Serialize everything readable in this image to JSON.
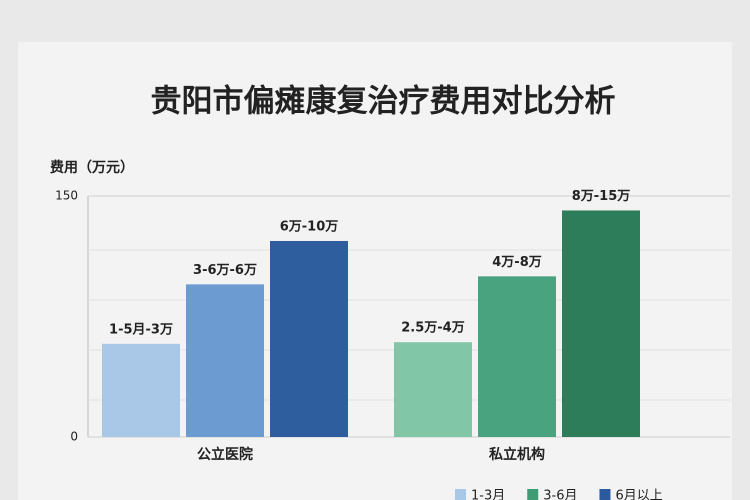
{
  "chart_data": {
    "type": "bar",
    "title": "贵阳市偏瘫康复治疗费用对比分析",
    "y_label": "费用（万元）",
    "categories": [
      "公立医院",
      "私立机构"
    ],
    "series": [
      {
        "name": "1-3月",
        "color": "#a9c8e8",
        "colors": [
          "#a9c8e8",
          "#82c6a8"
        ],
        "values": [
          58,
          59
        ],
        "labels": [
          "1-5月-3万",
          "2.5万-4万"
        ]
      },
      {
        "name": "3-6月",
        "color": "#3f9c75",
        "colors": [
          "#6b9bd1",
          "#4aa37f"
        ],
        "values": [
          95,
          100
        ],
        "labels": [
          "3-6万-6万",
          "4万-8万"
        ]
      },
      {
        "name": "6月以上",
        "color": "#2c5a9c",
        "colors": [
          "#2f5e9e",
          "#2e7d5a"
        ],
        "values": [
          122,
          141
        ],
        "labels": [
          "6万-10万",
          "8万-15万"
        ]
      }
    ],
    "ylim": [
      0,
      150
    ],
    "yticks": [
      0,
      150
    ],
    "grid": true
  }
}
